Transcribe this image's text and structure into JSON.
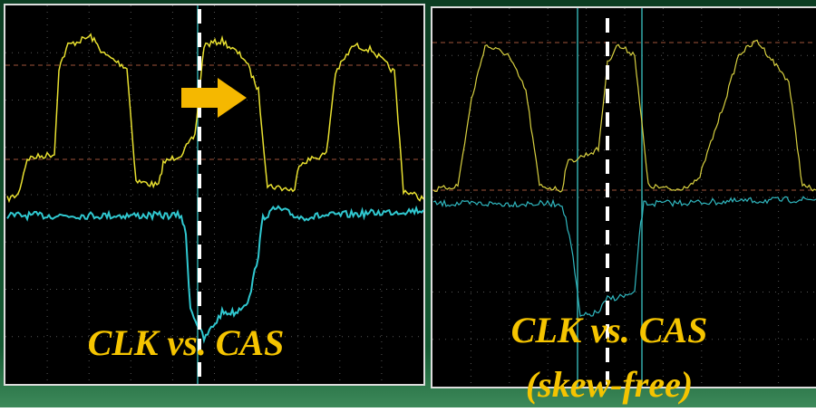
{
  "panels": [
    {
      "caption": "CLK vs. CAS"
    },
    {
      "caption": "CLK vs. CAS",
      "subcaption": "(skew-free)"
    }
  ]
}
